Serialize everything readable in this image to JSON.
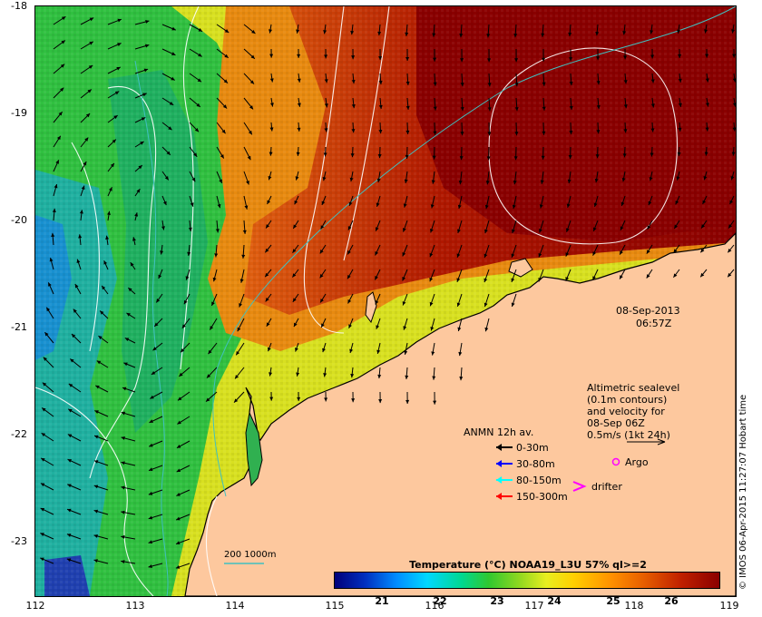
{
  "map": {
    "lat_labels": [
      "-18",
      "-19",
      "-20",
      "-21",
      "-22",
      "-23"
    ],
    "lon_labels": [
      "112",
      "113",
      "114",
      "115",
      "116",
      "117",
      "118",
      "119"
    ],
    "date": "08-Sep-2013",
    "time": "06:57Z",
    "altimetry_note": [
      "Altimetric sealevel",
      "(0.1m contours)",
      "and velocity for",
      "08-Sep 06Z",
      "0.5m/s (1kt 24h)"
    ],
    "legend_title": "ANMN 12h av.",
    "legend_items": [
      {
        "label": "0-30m",
        "color": "#000000"
      },
      {
        "label": "30-80m",
        "color": "#0000ff"
      },
      {
        "label": "80-150m",
        "color": "#00ffff"
      },
      {
        "label": "150-300m",
        "color": "#ff0000"
      }
    ],
    "argo_label": "Argo",
    "argo_color": "#ff00ff",
    "drifter_label": "drifter",
    "drifter_color": "#ff00ff",
    "isobath_label": "200  1000m",
    "isobath_color": "#40c0c0",
    "colorbar_title": "Temperature (°C) NOAA19_L3U 57% ql>=2",
    "colorbar_labels": [
      "21",
      "22",
      "23",
      "24",
      "25",
      "26"
    ],
    "credit": "© IMOS 06-Apr-2015 11:27:07 Hobart time",
    "land_color": "#fdc89e"
  }
}
